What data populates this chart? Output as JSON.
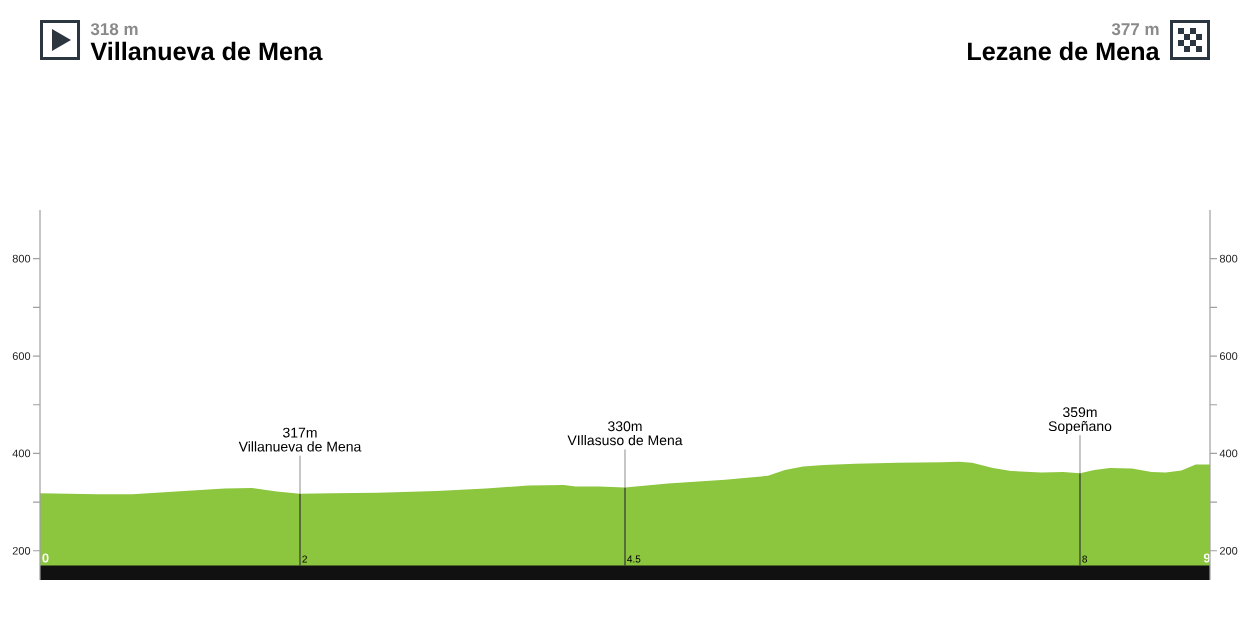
{
  "chart_data": {
    "type": "area",
    "annotations": [
      "318 m",
      "Villanueva de Mena",
      "377 m",
      "Lezane de Mena",
      "317m",
      "330m",
      "359m"
    ],
    "x": [
      0,
      0.44,
      0.71,
      1.17,
      1.42,
      1.63,
      1.82,
      2,
      2.24,
      2.6,
      3.05,
      3.43,
      3.76,
      4.03,
      4.12,
      4.3,
      4.5,
      4.83,
      5.27,
      5.6,
      5.73,
      5.87,
      6.03,
      6.27,
      6.6,
      6.93,
      7.07,
      7.17,
      7.33,
      7.47,
      7.7,
      7.87,
      8,
      8.11,
      8.23,
      8.4,
      8.55,
      8.66,
      8.78,
      8.89,
      9
    ],
    "series": [
      {
        "color": "#8cc63f",
        "values": [
          318,
          316,
          316,
          324,
          328,
          329,
          322,
          317,
          318,
          319,
          323,
          328,
          334,
          335,
          332,
          332,
          330,
          338,
          346,
          354,
          366,
          373,
          376,
          379,
          381,
          382,
          383,
          381,
          370,
          364,
          361,
          362,
          359,
          366,
          370,
          369,
          362,
          361,
          365,
          377,
          377
        ]
      }
    ],
    "xlim": [
      0,
      9
    ],
    "xticks": [
      0,
      2,
      4.5,
      8,
      9
    ],
    "ylim": [
      140,
      900
    ],
    "yticks": [
      200,
      {
        "value": 300,
        "label": null
      },
      400,
      {
        "value": 500,
        "label": null
      },
      600,
      {
        "value": 700,
        "label": null
      },
      800
    ],
    "y2lim": [
      140,
      900
    ],
    "y2ticks": [
      200,
      {
        "value": 300,
        "label": null
      },
      400,
      {
        "value": 500,
        "label": null
      },
      600,
      {
        "value": 700,
        "label": null
      },
      800
    ],
    "ref_lines": [
      {
        "axis": "x",
        "value": 2,
        "label": "Villanueva de Mena"
      },
      {
        "axis": "x",
        "value": 4.5,
        "label": "VIllasuso de Mena"
      },
      {
        "axis": "x",
        "value": 8,
        "label": "Sopeñano"
      }
    ],
    "bands": [
      {
        "axis": "y",
        "from": 140,
        "to": 170,
        "color": "#111111"
      }
    ]
  }
}
